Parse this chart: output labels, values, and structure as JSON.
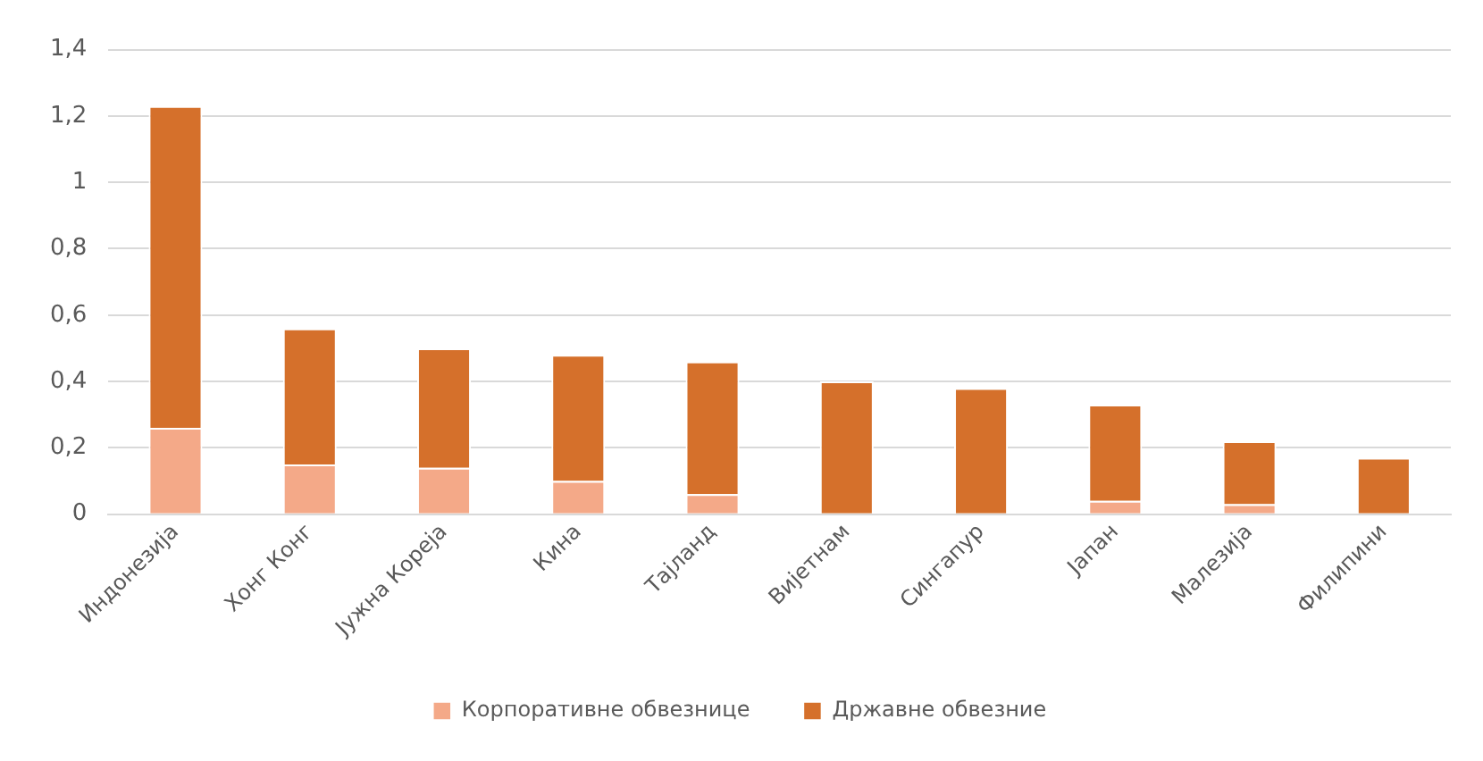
{
  "chart_data": {
    "type": "bar",
    "stacked": true,
    "categories": [
      "Индонезија",
      "Хонг Конг",
      "Јужна Кореја",
      "Кина",
      "Тајланд",
      "Вијетнам",
      "Сингапур",
      "Јапан",
      "Малезија",
      "Филипини"
    ],
    "series": [
      {
        "name": "Корпоративне обвезнице",
        "color": "#f4a988",
        "values": [
          0.26,
          0.15,
          0.14,
          0.1,
          0.06,
          0,
          0,
          0.04,
          0.03,
          0
        ]
      },
      {
        "name": "Државне обвезние",
        "color": "#d5702b",
        "values": [
          0.97,
          0.41,
          0.36,
          0.38,
          0.4,
          0.4,
          0.38,
          0.29,
          0.19,
          0.17
        ]
      }
    ],
    "ylim": [
      0,
      1.4
    ],
    "yticks": [
      0,
      {
        "value": 0.2,
        "label": "0,2"
      },
      {
        "value": 0.4,
        "label": "0,4"
      },
      {
        "value": 0.6,
        "label": "0,6"
      },
      {
        "value": 0.8,
        "label": "0,8"
      },
      1,
      {
        "value": 1.2,
        "label": "1,2"
      },
      {
        "value": 1.4,
        "label": "1,4"
      }
    ],
    "grid": "y",
    "legend": "bottom"
  }
}
